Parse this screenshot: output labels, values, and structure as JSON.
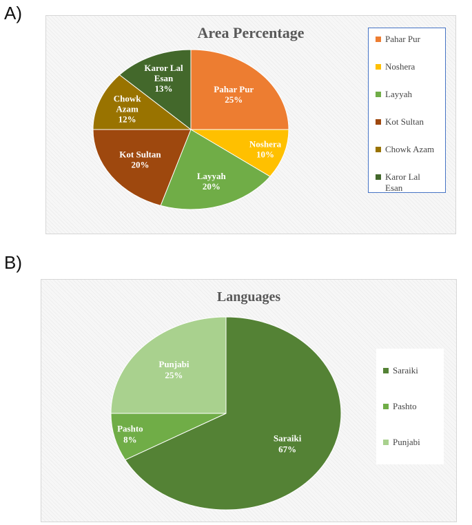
{
  "panels": [
    {
      "label": "A)",
      "chart_data": {
        "type": "pie",
        "title": "Area Percentage",
        "legend_position": "right",
        "categories": [
          "Pahar Pur",
          "Noshera",
          "Layyah",
          "Kot Sultan",
          "Chowk Azam",
          "Karor Lal Esan"
        ],
        "values": [
          25,
          10,
          20,
          20,
          12,
          13
        ],
        "data_labels": [
          "Pahar Pur\n25%",
          "Noshera\n10%",
          "Layyah\n20%",
          "Kot Sultan\n20%",
          "Chowk\nAzam\n12%",
          "Karor Lal\nEsan\n13%"
        ],
        "legend_labels": [
          "Pahar Pur",
          "Noshera",
          "Layyah",
          "Kot Sultan",
          "Chowk Azam",
          "Karor Lal\nEsan"
        ],
        "colors": [
          "#ED7D31",
          "#FFC000",
          "#70AD47",
          "#9E480E",
          "#997300",
          "#43682B"
        ]
      }
    },
    {
      "label": "B)",
      "chart_data": {
        "type": "pie",
        "title": "Languages",
        "legend_position": "right",
        "categories": [
          "Saraiki",
          "Pashto",
          "Punjabi"
        ],
        "values": [
          67,
          8,
          25
        ],
        "data_labels": [
          "Saraiki\n67%",
          "Pashto\n8%",
          "Punjabi\n25%"
        ],
        "legend_labels": [
          "Saraiki",
          "Pashto",
          "Punjabi"
        ],
        "colors": [
          "#548235",
          "#70AD47",
          "#A9D18E"
        ]
      }
    }
  ]
}
